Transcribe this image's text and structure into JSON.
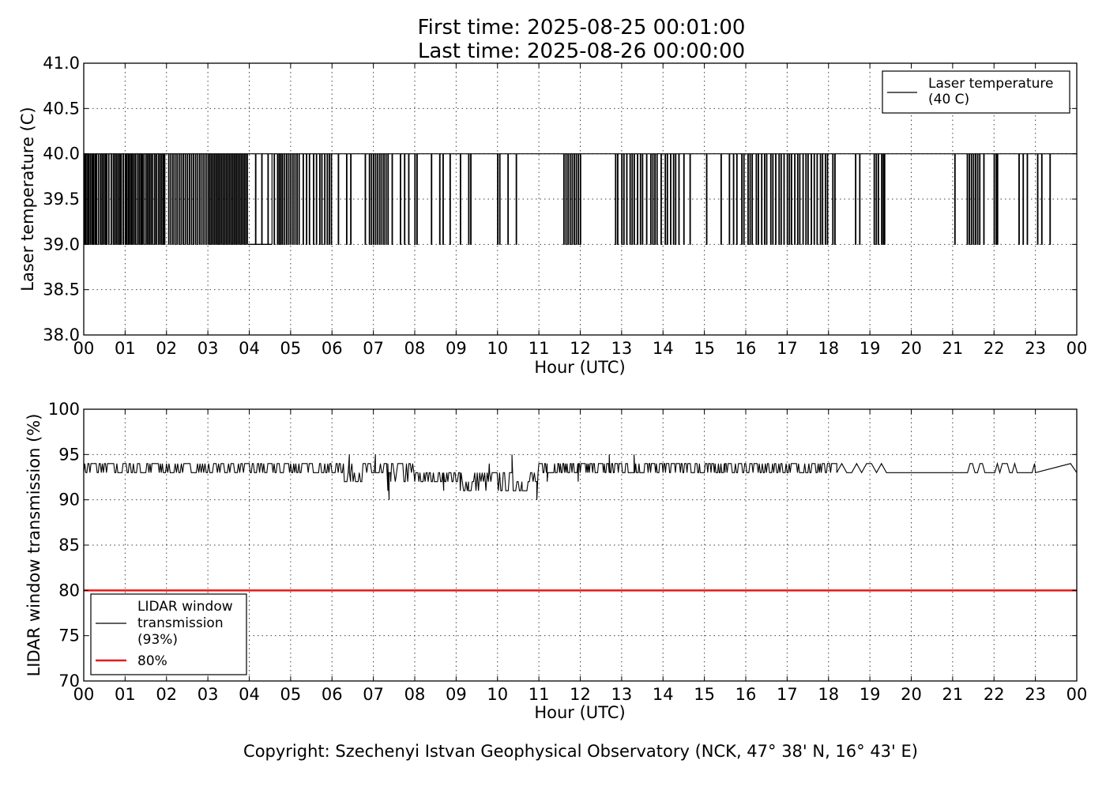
{
  "header": {
    "line1": "First time: 2025-08-25 00:01:00",
    "line2": "Last time: 2025-08-26 00:00:00"
  },
  "footer": {
    "text": "Copyright: Szechenyi Istvan Geophysical Observatory (NCK, 47° 38' N, 16° 43' E)"
  },
  "colors": {
    "series": "#000000",
    "threshold": "#e41a1c",
    "background": "#ffffff"
  },
  "chart_data": [
    {
      "type": "line",
      "xlabel": "Hour (UTC)",
      "ylabel": "Laser temperature (C)",
      "xlim": [
        0,
        24
      ],
      "ylim": [
        38.0,
        41.0
      ],
      "x_ticks": [
        "00",
        "01",
        "02",
        "03",
        "04",
        "05",
        "06",
        "07",
        "08",
        "09",
        "10",
        "11",
        "12",
        "13",
        "14",
        "15",
        "16",
        "17",
        "18",
        "19",
        "20",
        "21",
        "22",
        "23",
        "00"
      ],
      "y_ticks": [
        "38.0",
        "38.5",
        "39.0",
        "39.5",
        "40.0",
        "40.5",
        "41.0"
      ],
      "grid": true,
      "legend_position": "top-right",
      "series": [
        {
          "name": "Laser temperature\n(40 C)",
          "baseline": 40.0,
          "alt_value": 39.0,
          "x_unit": "hour",
          "spike_hours": [
            0.02,
            0.05,
            0.09,
            0.12,
            0.16,
            0.2,
            0.23,
            0.27,
            0.3,
            0.35,
            0.4,
            0.44,
            0.48,
            0.52,
            0.55,
            0.6,
            0.66,
            0.71,
            0.75,
            0.79,
            0.83,
            0.87,
            0.9,
            0.95,
            1.0,
            1.03,
            1.07,
            1.1,
            1.14,
            1.17,
            1.21,
            1.25,
            1.3,
            1.34,
            1.38,
            1.41,
            1.45,
            1.5,
            1.54,
            1.58,
            1.62,
            1.66,
            1.71,
            1.75,
            1.8,
            1.84,
            1.88,
            1.92,
            1.95,
            2.05,
            2.1,
            2.15,
            2.2,
            2.25,
            2.3,
            2.35,
            2.4,
            2.45,
            2.5,
            2.55,
            2.6,
            2.65,
            2.7,
            2.75,
            2.8,
            2.85,
            2.9,
            2.95,
            3.0,
            3.04,
            3.08,
            3.12,
            3.16,
            3.2,
            3.24,
            3.28,
            3.32,
            3.36,
            3.4,
            3.44,
            3.48,
            3.52,
            3.56,
            3.6,
            3.64,
            3.68,
            3.72,
            3.76,
            3.8,
            3.84,
            3.88,
            3.92,
            4.15,
            4.3,
            4.45,
            4.6,
            4.68,
            4.72,
            4.76,
            4.8,
            4.85,
            4.9,
            4.95,
            5.0,
            5.05,
            5.1,
            5.15,
            5.2,
            5.3,
            5.38,
            5.45,
            5.55,
            5.62,
            5.7,
            5.75,
            5.82,
            5.88,
            5.93,
            5.98,
            6.15,
            6.35,
            6.45,
            6.8,
            6.9,
            6.95,
            7.0,
            7.05,
            7.1,
            7.15,
            7.2,
            7.25,
            7.3,
            7.35,
            7.45,
            7.65,
            7.75,
            7.85,
            8.0,
            8.05,
            8.4,
            8.6,
            8.68,
            8.85,
            9.1,
            9.3,
            9.35,
            10.0,
            10.05,
            10.25,
            10.45,
            11.6,
            11.65,
            11.7,
            11.75,
            11.8,
            11.85,
            11.9,
            11.95,
            12.0,
            12.85,
            12.9,
            13.0,
            13.05,
            13.12,
            13.2,
            13.25,
            13.3,
            13.38,
            13.45,
            13.5,
            13.6,
            13.7,
            13.75,
            13.8,
            13.85,
            13.95,
            14.05,
            14.1,
            14.18,
            14.25,
            14.3,
            14.38,
            14.5,
            14.65,
            15.05,
            15.4,
            15.6,
            15.7,
            15.78,
            15.9,
            15.95,
            16.05,
            16.1,
            16.15,
            16.25,
            16.3,
            16.38,
            16.45,
            16.5,
            16.6,
            16.65,
            16.72,
            16.8,
            16.85,
            16.92,
            17.0,
            17.05,
            17.1,
            17.18,
            17.25,
            17.3,
            17.38,
            17.45,
            17.5,
            17.58,
            17.65,
            17.72,
            17.8,
            17.85,
            17.92,
            17.97,
            18.1,
            18.15,
            18.65,
            18.75,
            19.1,
            19.15,
            19.2,
            19.28,
            19.32,
            19.35,
            21.05,
            21.35,
            21.4,
            21.45,
            21.5,
            21.55,
            21.6,
            21.65,
            21.75,
            22.0,
            22.05,
            22.08,
            22.6,
            22.7,
            22.8,
            23.05,
            23.15,
            23.35
          ],
          "low_plateaus": [
            [
              3.96,
              4.55
            ]
          ]
        }
      ]
    },
    {
      "type": "line",
      "xlabel": "Hour (UTC)",
      "ylabel": "LIDAR window transmission (%)",
      "xlim": [
        0,
        24
      ],
      "ylim": [
        70,
        100
      ],
      "x_ticks": [
        "00",
        "01",
        "02",
        "03",
        "04",
        "05",
        "06",
        "07",
        "08",
        "09",
        "10",
        "11",
        "12",
        "13",
        "14",
        "15",
        "16",
        "17",
        "18",
        "19",
        "20",
        "21",
        "22",
        "23",
        "00"
      ],
      "y_ticks": [
        "70",
        "75",
        "80",
        "85",
        "90",
        "95",
        "100"
      ],
      "grid": true,
      "legend_position": "bottom-left",
      "series": [
        {
          "name": "LIDAR window\ntransmission\n(93%)",
          "baseline": 93,
          "x_unit": "hour",
          "segments": [
            {
              "from": 0.0,
              "to": 2.0,
              "low": 93,
              "high": 94,
              "step_hours": 0.025
            },
            {
              "from": 2.0,
              "to": 4.0,
              "low": 93,
              "high": 94,
              "step_hours": 0.03
            },
            {
              "from": 4.0,
              "to": 6.3,
              "low": 93,
              "high": 94,
              "step_hours": 0.025
            },
            {
              "from": 6.3,
              "to": 7.5,
              "low": 92,
              "high": 94,
              "step_hours": 0.03
            },
            {
              "from": 7.5,
              "to": 8.0,
              "low": 92,
              "high": 94,
              "step_hours": 0.03
            },
            {
              "from": 8.0,
              "to": 9.0,
              "low": 92,
              "high": 93,
              "step_hours": 0.025
            },
            {
              "from": 9.0,
              "to": 11.0,
              "low": 91,
              "high": 93,
              "step_hours": 0.03
            },
            {
              "from": 11.0,
              "to": 15.5,
              "low": 93,
              "high": 94,
              "step_hours": 0.02
            },
            {
              "from": 15.5,
              "to": 18.2,
              "low": 93,
              "high": 94,
              "step_hours": 0.025
            },
            {
              "from": 18.2,
              "to": 19.5,
              "low": 93,
              "high": 94,
              "step_hours": 0.12
            },
            {
              "from": 19.5,
              "to": 21.0,
              "low": 93,
              "high": 94,
              "step_hours": 0.5
            },
            {
              "from": 21.0,
              "to": 23.0,
              "low": 93,
              "high": 94,
              "step_hours": 0.06
            },
            {
              "from": 23.0,
              "to": 24.0,
              "low": 93,
              "high": 93,
              "step_hours": 1.0
            }
          ],
          "extra_points": [
            [
              6.42,
              95
            ],
            [
              6.45,
              92
            ],
            [
              7.05,
              95
            ],
            [
              7.35,
              91
            ],
            [
              7.38,
              90
            ],
            [
              7.42,
              92
            ],
            [
              8.7,
              91
            ],
            [
              9.1,
              91
            ],
            [
              9.3,
              91
            ],
            [
              9.8,
              94
            ],
            [
              10.35,
              95
            ],
            [
              10.4,
              91
            ],
            [
              10.6,
              91
            ],
            [
              10.95,
              90
            ],
            [
              11.2,
              92
            ],
            [
              11.95,
              92
            ],
            [
              12.7,
              95
            ],
            [
              13.3,
              95
            ],
            [
              23.85,
              94
            ]
          ]
        },
        {
          "name": "80%",
          "values": [
            80,
            80
          ],
          "x": [
            0,
            24
          ]
        }
      ]
    }
  ]
}
